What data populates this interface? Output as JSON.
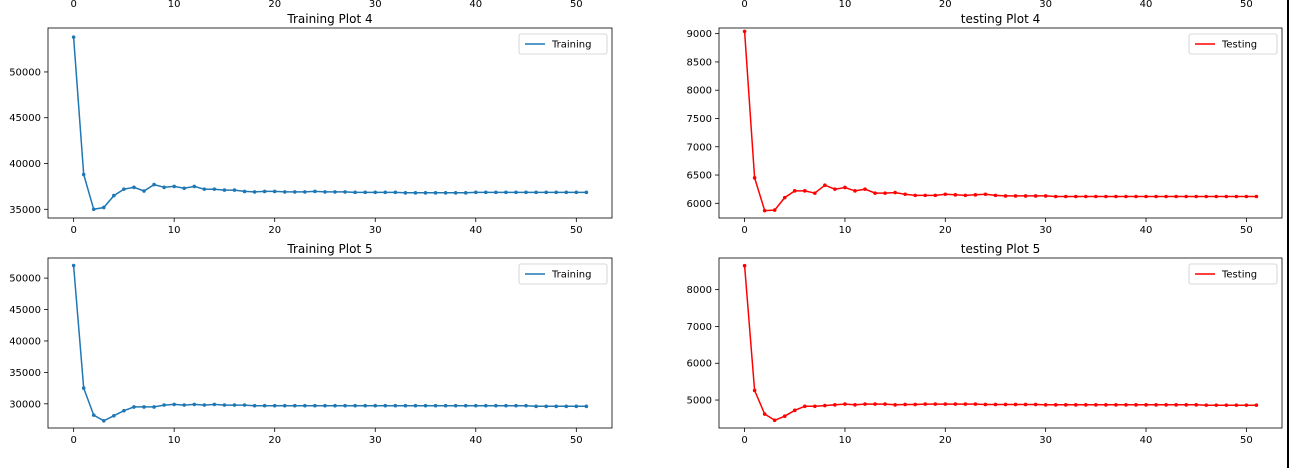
{
  "top_strip": {
    "left_ticks": [
      "0",
      "10",
      "20",
      "30",
      "40",
      "50"
    ],
    "right_ticks": [
      "0",
      "10",
      "20",
      "30",
      "40",
      "50"
    ]
  },
  "chart_data": [
    {
      "type": "line",
      "title": "Training Plot 4",
      "xlabel": "",
      "ylabel": "",
      "xlim": [
        -2.55,
        53.55
      ],
      "ylim": [
        34050,
        54800
      ],
      "xticks": [
        0,
        10,
        20,
        30,
        40,
        50
      ],
      "yticks": [
        35000,
        40000,
        45000,
        50000
      ],
      "legend_position": "top-right",
      "grid": false,
      "series": [
        {
          "name": "Training",
          "color": "#1f77b4",
          "x": [
            0,
            1,
            2,
            3,
            4,
            5,
            6,
            7,
            8,
            9,
            10,
            11,
            12,
            13,
            14,
            15,
            16,
            17,
            18,
            19,
            20,
            21,
            22,
            23,
            24,
            25,
            26,
            27,
            28,
            29,
            30,
            31,
            32,
            33,
            34,
            35,
            36,
            37,
            38,
            39,
            40,
            41,
            42,
            43,
            44,
            45,
            46,
            47,
            48,
            49,
            50,
            51
          ],
          "y": [
            53800,
            38800,
            35000,
            35200,
            36500,
            37200,
            37400,
            37000,
            37700,
            37400,
            37500,
            37300,
            37500,
            37200,
            37200,
            37100,
            37100,
            36950,
            36900,
            36950,
            36950,
            36900,
            36900,
            36900,
            36950,
            36900,
            36900,
            36900,
            36850,
            36850,
            36850,
            36850,
            36850,
            36800,
            36800,
            36800,
            36800,
            36800,
            36800,
            36800,
            36850,
            36850,
            36850,
            36850,
            36850,
            36850,
            36850,
            36850,
            36850,
            36850,
            36850,
            36850
          ]
        }
      ]
    },
    {
      "type": "line",
      "title": "testing Plot 4",
      "xlabel": "",
      "ylabel": "",
      "xlim": [
        -2.55,
        53.55
      ],
      "ylim": [
        5740,
        9100
      ],
      "xticks": [
        0,
        10,
        20,
        30,
        40,
        50
      ],
      "yticks": [
        6000,
        6500,
        7000,
        7500,
        8000,
        8500,
        9000
      ],
      "legend_position": "top-right",
      "grid": false,
      "series": [
        {
          "name": "Testing",
          "color": "#ff0000",
          "x": [
            0,
            1,
            2,
            3,
            4,
            5,
            6,
            7,
            8,
            9,
            10,
            11,
            12,
            13,
            14,
            15,
            16,
            17,
            18,
            19,
            20,
            21,
            22,
            23,
            24,
            25,
            26,
            27,
            28,
            29,
            30,
            31,
            32,
            33,
            34,
            35,
            36,
            37,
            38,
            39,
            40,
            41,
            42,
            43,
            44,
            45,
            46,
            47,
            48,
            49,
            50,
            51
          ],
          "y": [
            9040,
            6450,
            5870,
            5880,
            6100,
            6220,
            6220,
            6180,
            6320,
            6250,
            6280,
            6220,
            6250,
            6180,
            6180,
            6190,
            6160,
            6140,
            6140,
            6140,
            6160,
            6150,
            6140,
            6150,
            6160,
            6140,
            6130,
            6130,
            6130,
            6130,
            6130,
            6120,
            6120,
            6120,
            6120,
            6120,
            6120,
            6120,
            6120,
            6120,
            6120,
            6120,
            6120,
            6120,
            6120,
            6120,
            6120,
            6120,
            6120,
            6120,
            6120,
            6120
          ]
        }
      ]
    },
    {
      "type": "line",
      "title": "Training Plot 5",
      "xlabel": "",
      "ylabel": "",
      "xlim": [
        -2.55,
        53.55
      ],
      "ylim": [
        26150,
        53200
      ],
      "xticks": [
        0,
        10,
        20,
        30,
        40,
        50
      ],
      "yticks": [
        30000,
        35000,
        40000,
        45000,
        50000
      ],
      "legend_position": "top-right",
      "grid": false,
      "series": [
        {
          "name": "Training",
          "color": "#1f77b4",
          "x": [
            0,
            1,
            2,
            3,
            4,
            5,
            6,
            7,
            8,
            9,
            10,
            11,
            12,
            13,
            14,
            15,
            16,
            17,
            18,
            19,
            20,
            21,
            22,
            23,
            24,
            25,
            26,
            27,
            28,
            29,
            30,
            31,
            32,
            33,
            34,
            35,
            36,
            37,
            38,
            39,
            40,
            41,
            42,
            43,
            44,
            45,
            46,
            47,
            48,
            49,
            50,
            51
          ],
          "y": [
            52000,
            32500,
            28200,
            27300,
            28100,
            28900,
            29500,
            29500,
            29500,
            29800,
            29900,
            29800,
            29900,
            29800,
            29900,
            29800,
            29800,
            29800,
            29700,
            29700,
            29700,
            29700,
            29700,
            29700,
            29700,
            29700,
            29700,
            29700,
            29700,
            29700,
            29700,
            29700,
            29700,
            29700,
            29700,
            29700,
            29700,
            29700,
            29700,
            29700,
            29700,
            29700,
            29700,
            29700,
            29700,
            29700,
            29600,
            29600,
            29600,
            29600,
            29600,
            29600
          ]
        }
      ]
    },
    {
      "type": "line",
      "title": "testing Plot 5",
      "xlabel": "",
      "ylabel": "",
      "xlim": [
        -2.55,
        53.55
      ],
      "ylim": [
        4240,
        8860
      ],
      "xticks": [
        0,
        10,
        20,
        30,
        40,
        50
      ],
      "yticks": [
        5000,
        6000,
        7000,
        8000
      ],
      "legend_position": "top-right",
      "grid": false,
      "series": [
        {
          "name": "Testing",
          "color": "#ff0000",
          "x": [
            0,
            1,
            2,
            3,
            4,
            5,
            6,
            7,
            8,
            9,
            10,
            11,
            12,
            13,
            14,
            15,
            16,
            17,
            18,
            19,
            20,
            21,
            22,
            23,
            24,
            25,
            26,
            27,
            28,
            29,
            30,
            31,
            32,
            33,
            34,
            35,
            36,
            37,
            38,
            39,
            40,
            41,
            42,
            43,
            44,
            45,
            46,
            47,
            48,
            49,
            50,
            51
          ],
          "y": [
            8650,
            5260,
            4620,
            4450,
            4560,
            4720,
            4830,
            4830,
            4850,
            4870,
            4890,
            4870,
            4890,
            4890,
            4890,
            4870,
            4880,
            4880,
            4890,
            4890,
            4890,
            4890,
            4890,
            4890,
            4880,
            4880,
            4880,
            4880,
            4880,
            4880,
            4870,
            4870,
            4870,
            4870,
            4870,
            4870,
            4870,
            4870,
            4870,
            4870,
            4870,
            4870,
            4870,
            4870,
            4870,
            4870,
            4860,
            4860,
            4860,
            4860,
            4860,
            4860
          ]
        }
      ]
    }
  ]
}
